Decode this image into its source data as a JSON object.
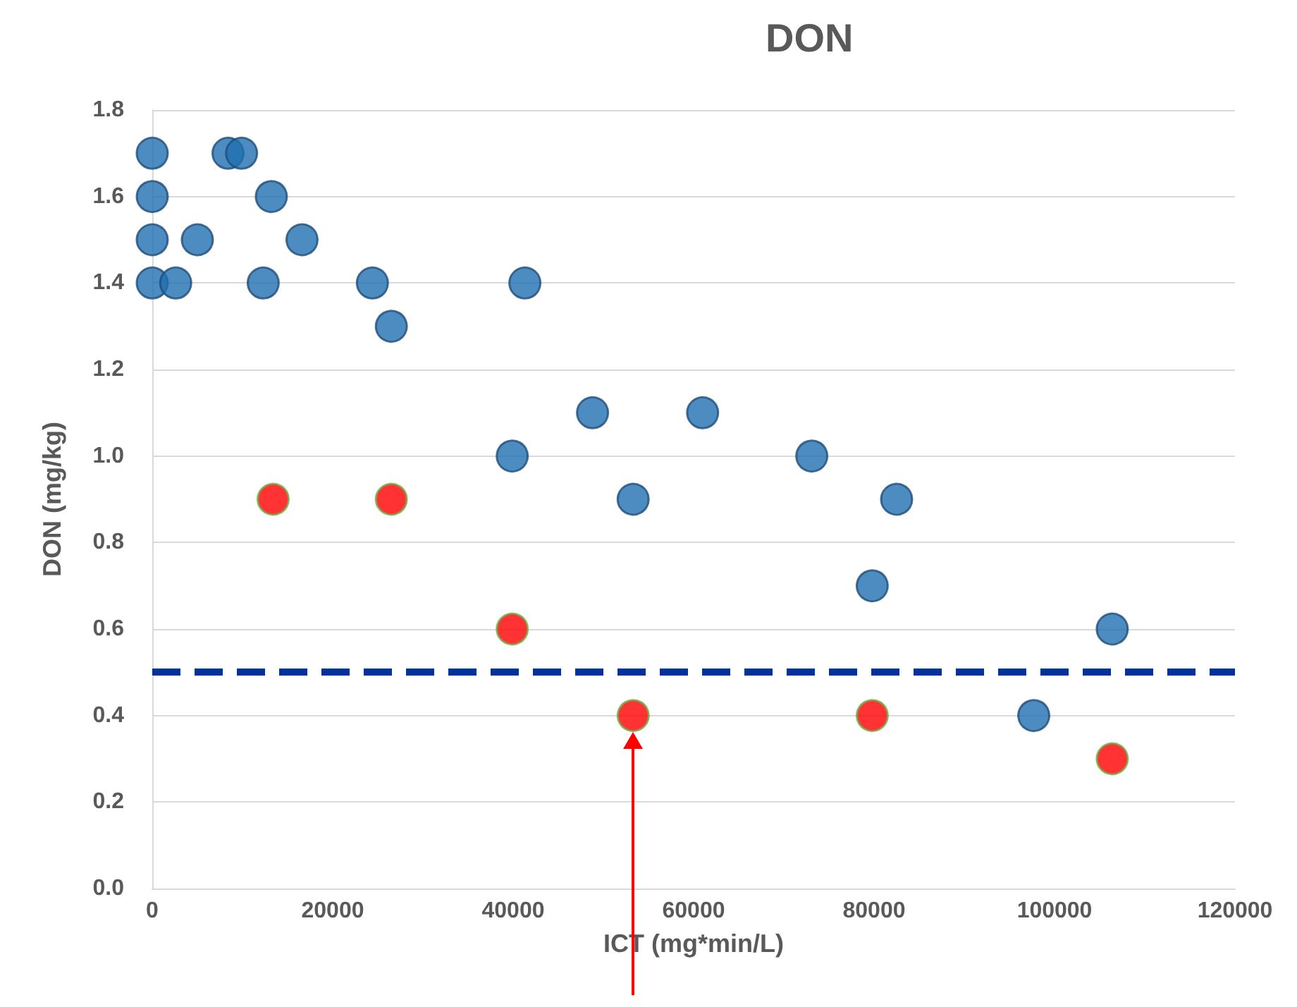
{
  "chart_data": {
    "type": "scatter",
    "title": "DON",
    "xlabel": "ICT (mg*min/L)",
    "ylabel": "DON (mg/kg)",
    "series": [
      {
        "color": "#1f6fb0",
        "x": [
          0,
          0,
          0,
          0,
          2600,
          5000,
          8400,
          9900,
          13200,
          12300,
          16600,
          24400,
          26500,
          39900,
          41300,
          48800,
          53300,
          61000,
          73100,
          82500,
          79800,
          97700,
          106400
        ],
        "values": [
          1.7,
          1.6,
          1.5,
          1.4,
          1.4,
          1.5,
          1.7,
          1.7,
          1.6,
          1.4,
          1.5,
          1.4,
          1.3,
          1.0,
          1.4,
          1.1,
          0.9,
          1.1,
          1.0,
          0.9,
          0.7,
          0.4,
          0.6
        ]
      },
      {
        "color": "#ff0000",
        "x": [
          13400,
          26500,
          39900,
          53300,
          79800,
          106400
        ],
        "values": [
          0.9,
          0.9,
          0.6,
          0.4,
          0.4,
          0.3
        ]
      }
    ],
    "xlim": [
      0,
      120000
    ],
    "xticks": [
      0,
      20000,
      40000,
      60000,
      80000,
      100000,
      120000
    ],
    "ylim": [
      0,
      1.8
    ],
    "yticks": [
      {
        "value": 0,
        "label": "0.0"
      },
      {
        "value": 0.2,
        "label": "0.2"
      },
      {
        "value": 0.4,
        "label": "0.4"
      },
      {
        "value": 0.6,
        "label": "0.6"
      },
      {
        "value": 0.8,
        "label": "0.8"
      },
      {
        "value": 1.0,
        "label": "1.0"
      },
      {
        "value": 1.2,
        "label": "1.2"
      },
      {
        "value": 1.4,
        "label": "1.4"
      },
      {
        "value": 1.6,
        "label": "1.6"
      },
      {
        "value": 1.8,
        "label": "1.8"
      }
    ],
    "ref_lines": [
      {
        "axis": "y",
        "value": 0.5,
        "color": "#003399",
        "line_style": "dashed"
      }
    ],
    "grid": "y",
    "marker": "circle"
  }
}
